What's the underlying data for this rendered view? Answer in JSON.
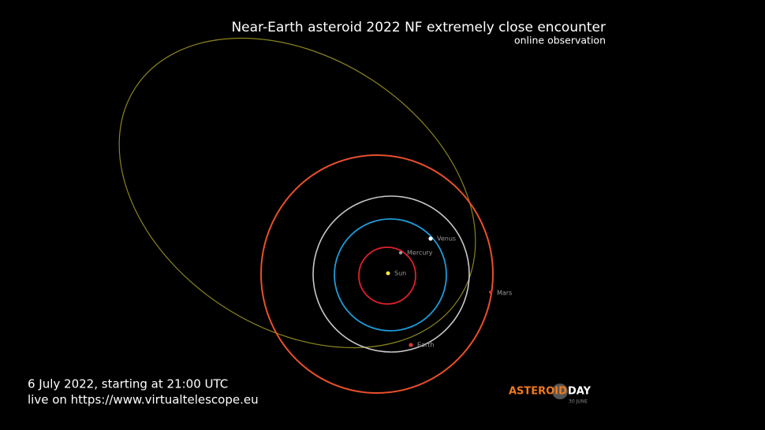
{
  "header": {
    "title": "Near-Earth asteroid 2022 NF extremely close encounter",
    "subtitle": "online observation"
  },
  "bodies": {
    "sun": "Sun",
    "mercury": "Mercury",
    "venus": "Venus",
    "earth": "Earth",
    "mars": "Mars"
  },
  "footer": {
    "line1": "6 July 2022, starting at 21:00 UTC",
    "line2": "live on https://www.virtualtelescope.eu"
  },
  "logo": {
    "word1": "ASTEROID",
    "word2": "DAY",
    "date": "30 JUNE"
  }
}
